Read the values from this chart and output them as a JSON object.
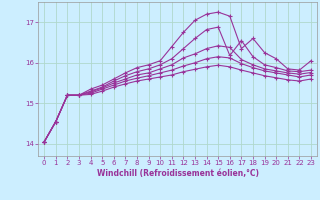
{
  "xlabel": "Windchill (Refroidissement éolien,°C)",
  "background_color": "#cceeff",
  "grid_color": "#b0d8cc",
  "line_color": "#993399",
  "xlim": [
    -0.5,
    23.5
  ],
  "ylim": [
    13.7,
    17.5
  ],
  "yticks": [
    14,
    15,
    16,
    17
  ],
  "xticks": [
    0,
    1,
    2,
    3,
    4,
    5,
    6,
    7,
    8,
    9,
    10,
    11,
    12,
    13,
    14,
    15,
    16,
    17,
    18,
    19,
    20,
    21,
    22,
    23
  ],
  "series": [
    [
      14.05,
      14.55,
      15.2,
      15.2,
      15.35,
      15.45,
      15.6,
      15.75,
      15.88,
      15.95,
      16.05,
      16.4,
      16.75,
      17.05,
      17.2,
      17.25,
      17.15,
      16.35,
      16.6,
      16.25,
      16.1,
      15.85,
      15.82,
      16.05
    ],
    [
      14.05,
      14.55,
      15.2,
      15.2,
      15.3,
      15.4,
      15.55,
      15.68,
      15.78,
      15.85,
      15.95,
      16.1,
      16.35,
      16.6,
      16.82,
      16.88,
      16.18,
      16.55,
      16.15,
      15.95,
      15.88,
      15.8,
      15.78,
      15.82
    ],
    [
      14.05,
      14.55,
      15.2,
      15.2,
      15.28,
      15.38,
      15.5,
      15.6,
      15.7,
      15.75,
      15.85,
      15.95,
      16.12,
      16.22,
      16.35,
      16.42,
      16.38,
      16.08,
      15.95,
      15.85,
      15.8,
      15.75,
      15.72,
      15.76
    ],
    [
      14.05,
      14.55,
      15.2,
      15.2,
      15.25,
      15.35,
      15.45,
      15.55,
      15.62,
      15.68,
      15.75,
      15.82,
      15.92,
      16.0,
      16.1,
      16.15,
      16.12,
      15.98,
      15.88,
      15.8,
      15.75,
      15.7,
      15.65,
      15.7
    ],
    [
      14.05,
      14.55,
      15.2,
      15.2,
      15.22,
      15.3,
      15.4,
      15.48,
      15.55,
      15.6,
      15.65,
      15.7,
      15.78,
      15.84,
      15.9,
      15.94,
      15.9,
      15.82,
      15.75,
      15.68,
      15.63,
      15.58,
      15.55,
      15.6
    ]
  ],
  "marker": "+",
  "marker_size": 3,
  "linewidth": 0.8
}
